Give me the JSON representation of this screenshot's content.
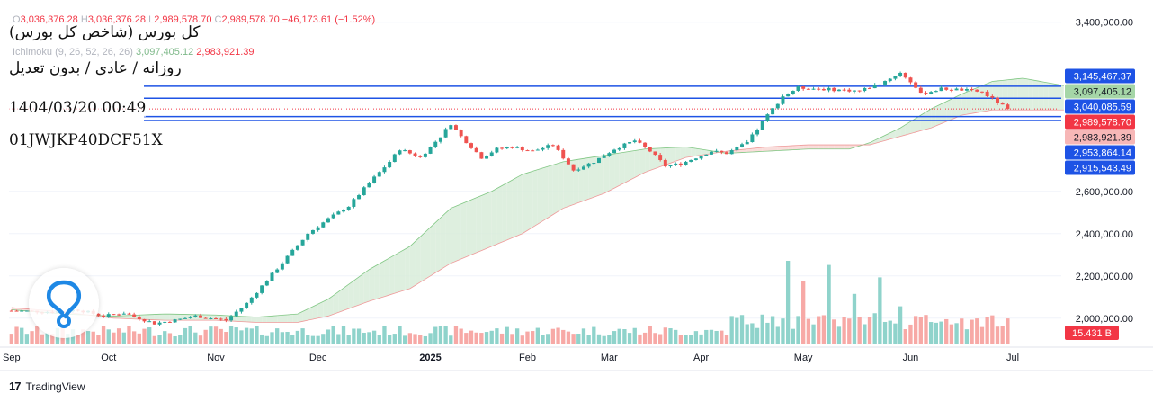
{
  "header": {
    "open_label": "O",
    "open": "3,036,376.28",
    "high_label": "H",
    "high": "3,036,376.28",
    "low_label": "L",
    "low": "2,989,578.70",
    "close_label": "C",
    "close": "2,989,578.70",
    "change": "−46,173.61 (−1.52%)",
    "ichimoku_label": "Ichimoku (9, 26, 52, 26, 26)",
    "ichimoku_value1": "3,097,405.12",
    "ichimoku_value2": "2,983,921.39"
  },
  "overlay_text": {
    "line1": "کل بورس (شاخص کل بورس)",
    "line2": "روزانه / عادی / بدون تعدیل",
    "line3": "1404/03/20 00:49",
    "line4": "01JWJKP40DCF51X"
  },
  "footer": {
    "brand": "TradingView",
    "logo_glyph": "17"
  },
  "colors": {
    "up": "#26a69a",
    "down": "#ef5350",
    "cloud_bull": "#d8ecd9",
    "cloud_bear": "#f8d7d5",
    "level_line": "#1e53e5"
  },
  "chart_data": {
    "type": "candlestick",
    "ylim": [
      1880000,
      3420000
    ],
    "y_ticks": [
      {
        "value": 3400000,
        "label": "3,400,000.00"
      },
      {
        "value": 2600000,
        "label": "2,600,000.00"
      },
      {
        "value": 2400000,
        "label": "2,400,000.00"
      },
      {
        "value": 2200000,
        "label": "2,200,000.00"
      },
      {
        "value": 2000000,
        "label": "2,000,000.00"
      }
    ],
    "x_ticks": [
      {
        "label": "Sep",
        "bar": 0
      },
      {
        "label": "Oct",
        "bar": 19
      },
      {
        "label": "Nov",
        "bar": 40
      },
      {
        "label": "Dec",
        "bar": 60
      },
      {
        "label": "2025",
        "bar": 82,
        "bold": true
      },
      {
        "label": "Feb",
        "bar": 101
      },
      {
        "label": "Mar",
        "bar": 117
      },
      {
        "label": "Apr",
        "bar": 135
      },
      {
        "label": "May",
        "bar": 155
      },
      {
        "label": "Jun",
        "bar": 176
      },
      {
        "label": "Jul",
        "bar": 196
      }
    ],
    "price_tags": [
      {
        "value": 3145467.37,
        "label": "3,145,467.37",
        "bg": "#1e53e5",
        "fg": "#ffffff"
      },
      {
        "value": 3097405.12,
        "label": "3,097,405.12",
        "bg": "#a5d6a7",
        "fg": "#131722"
      },
      {
        "value": 3040085.59,
        "label": "3,040,085.59",
        "bg": "#1e53e5",
        "fg": "#ffffff"
      },
      {
        "value": 2989578.7,
        "label": "2,989,578.70",
        "bg": "#f23645",
        "fg": "#ffffff"
      },
      {
        "value": 2983921.39,
        "label": "2,983,921.39",
        "bg": "#f7b7b7",
        "fg": "#131722"
      },
      {
        "value": 2953864.14,
        "label": "2,953,864.14",
        "bg": "#1e53e5",
        "fg": "#ffffff"
      },
      {
        "value": 2915543.49,
        "label": "2,915,543.49",
        "bg": "#1e53e5",
        "fg": "#ffffff"
      }
    ],
    "horizontal_levels": [
      3097405.12,
      3040085.59,
      2953864.14,
      2935000
    ],
    "last_close": 2989578.7,
    "volume_label": "15.431 B",
    "anchors": [
      [
        0,
        2035000
      ],
      [
        8,
        2030000
      ],
      [
        13,
        2040000
      ],
      [
        18,
        2010000
      ],
      [
        22,
        2025000
      ],
      [
        28,
        1975000
      ],
      [
        32,
        1990000
      ],
      [
        36,
        2010000
      ],
      [
        42,
        1990000
      ],
      [
        46,
        2070000
      ],
      [
        50,
        2180000
      ],
      [
        54,
        2290000
      ],
      [
        58,
        2400000
      ],
      [
        62,
        2470000
      ],
      [
        66,
        2530000
      ],
      [
        70,
        2640000
      ],
      [
        74,
        2740000
      ],
      [
        76,
        2800000
      ],
      [
        80,
        2760000
      ],
      [
        84,
        2860000
      ],
      [
        86,
        2920000
      ],
      [
        88,
        2860000
      ],
      [
        92,
        2760000
      ],
      [
        95,
        2800000
      ],
      [
        98,
        2810000
      ],
      [
        102,
        2790000
      ],
      [
        106,
        2820000
      ],
      [
        110,
        2700000
      ],
      [
        114,
        2740000
      ],
      [
        118,
        2800000
      ],
      [
        122,
        2840000
      ],
      [
        125,
        2790000
      ],
      [
        128,
        2720000
      ],
      [
        131,
        2730000
      ],
      [
        134,
        2760000
      ],
      [
        137,
        2790000
      ],
      [
        140,
        2780000
      ],
      [
        144,
        2830000
      ],
      [
        148,
        2960000
      ],
      [
        151,
        3050000
      ],
      [
        154,
        3090000
      ],
      [
        158,
        3085000
      ],
      [
        162,
        3080000
      ],
      [
        166,
        3075000
      ],
      [
        170,
        3110000
      ],
      [
        174,
        3160000
      ],
      [
        176,
        3120000
      ],
      [
        178,
        3060000
      ],
      [
        182,
        3085000
      ],
      [
        186,
        3080000
      ],
      [
        190,
        3070000
      ],
      [
        193,
        3020000
      ],
      [
        195,
        2989578.7
      ]
    ],
    "cloud_anchors": [
      [
        0,
        2040000,
        2050000
      ],
      [
        10,
        2020000,
        2030000
      ],
      [
        20,
        2010000,
        2000000
      ],
      [
        30,
        2020000,
        1990000
      ],
      [
        40,
        2015000,
        1990000
      ],
      [
        48,
        2005000,
        1980000
      ],
      [
        56,
        2020000,
        1980000
      ],
      [
        62,
        2090000,
        2010000
      ],
      [
        70,
        2230000,
        2080000
      ],
      [
        78,
        2340000,
        2140000
      ],
      [
        86,
        2520000,
        2260000
      ],
      [
        94,
        2600000,
        2340000
      ],
      [
        100,
        2680000,
        2400000
      ],
      [
        108,
        2740000,
        2520000
      ],
      [
        116,
        2770000,
        2590000
      ],
      [
        124,
        2800000,
        2690000
      ],
      [
        132,
        2810000,
        2760000
      ],
      [
        140,
        2780000,
        2790000
      ],
      [
        148,
        2790000,
        2810000
      ],
      [
        156,
        2800000,
        2820000
      ],
      [
        164,
        2800000,
        2820000
      ],
      [
        168,
        2830000,
        2820000
      ],
      [
        174,
        2900000,
        2860000
      ],
      [
        180,
        2990000,
        2900000
      ],
      [
        186,
        3060000,
        2960000
      ],
      [
        192,
        3120000,
        2985000
      ],
      [
        198,
        3135000,
        2985000
      ],
      [
        206,
        3100000,
        2985000
      ]
    ],
    "volume_spikes": [
      [
        152,
        1.0
      ],
      [
        155,
        0.75
      ],
      [
        160,
        0.95
      ],
      [
        165,
        0.6
      ],
      [
        170,
        0.8
      ],
      [
        174,
        0.45
      ]
    ]
  }
}
